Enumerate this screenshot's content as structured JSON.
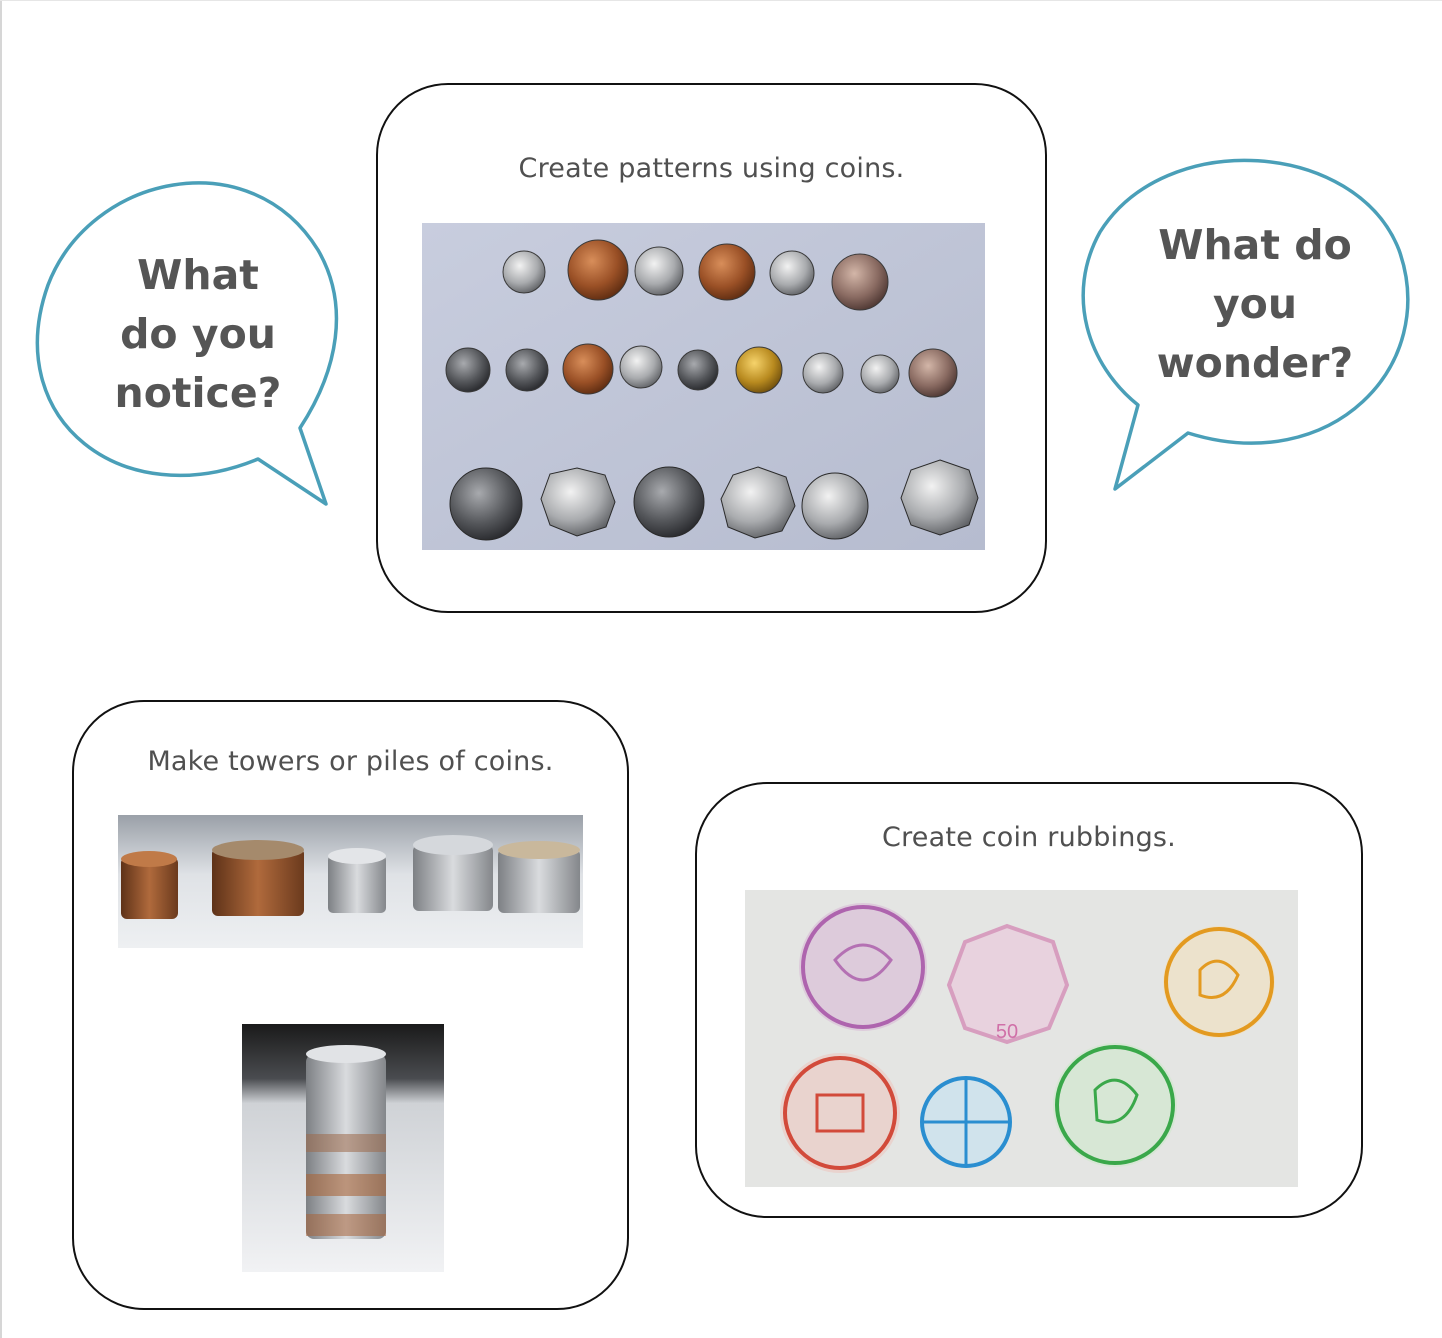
{
  "bubbles": {
    "notice": {
      "line1": "What",
      "line2": "do you",
      "line3": "notice?"
    },
    "wonder": {
      "line1": "What do",
      "line2": "you",
      "line3": "wonder?"
    }
  },
  "cards": {
    "patterns": {
      "title": "Create patterns using coins."
    },
    "towers": {
      "title": "Make towers or piles of coins."
    },
    "rubbings": {
      "title": "Create coin rubbings."
    }
  },
  "colors": {
    "bubble_outline": "#4a9fb8",
    "card_outline": "#111111",
    "text": "#555555"
  }
}
